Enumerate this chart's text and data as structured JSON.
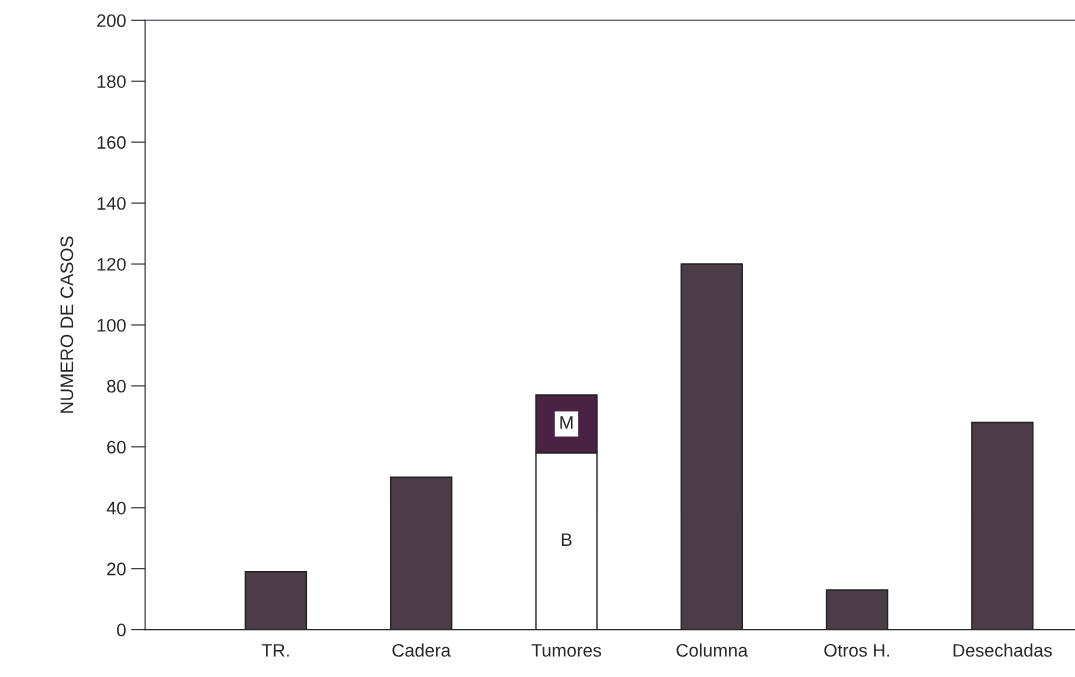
{
  "chart_data": {
    "type": "bar",
    "stacked": true,
    "ylabel": "NUMERO DE CASOS",
    "categories": [
      "TR.",
      "Cadera",
      "Tumores",
      "Columna",
      "Otros H.",
      "Desechadas"
    ],
    "series": [
      {
        "color": "#4b3c48",
        "values": [
          19,
          50,
          null,
          120,
          13,
          68
        ]
      },
      {
        "name": "B",
        "color": "#ffffff",
        "values": [
          null,
          null,
          58,
          null,
          null,
          null
        ]
      },
      {
        "name": "M",
        "color": "#4a2344",
        "values": [
          null,
          null,
          19,
          null,
          null,
          null
        ]
      }
    ],
    "ylim": [
      0,
      200
    ],
    "yticks": [
      0,
      20,
      40,
      60,
      80,
      100,
      120,
      140,
      160,
      180,
      200
    ],
    "grid": false,
    "legend": false
  }
}
